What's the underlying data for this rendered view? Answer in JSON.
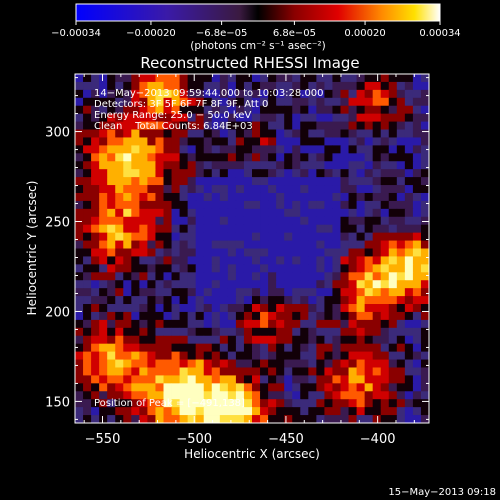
{
  "chart_data": {
    "type": "heatmap",
    "title": "Reconstructed RHESSI Image",
    "xlabel": "Heliocentric X (arcsec)",
    "ylabel": "Heliocentric Y (arcsec)",
    "xlim": [
      -565,
      -372
    ],
    "ylim": [
      138,
      332
    ],
    "x_ticks": [
      -550,
      -500,
      -450,
      -400
    ],
    "x_tick_labels": [
      "−550",
      "−500",
      "−450",
      "−400"
    ],
    "y_ticks": [
      150,
      200,
      250,
      300
    ],
    "y_tick_labels": [
      "150",
      "200",
      "250",
      "300"
    ],
    "colorbar": {
      "range": [
        -0.00034,
        0.00034
      ],
      "tick_values": [
        -0.00034,
        -0.0002,
        -6.8e-05,
        6.8e-05,
        0.0002,
        0.00034
      ],
      "tick_labels": [
        "−0.00034",
        "−0.00020",
        "−6.8e−05",
        "6.8e−05",
        "0.00020",
        "0.00034"
      ],
      "unit_label": "(photons cm⁻² s⁻¹ asec⁻²)"
    },
    "annotations": [
      "14−May−2013 09:59:44.000 to 10:03:28.000",
      "Detectors: 3F 5F 6F 7F 8F 9F, Att 0",
      "Energy Range: 25.0 − 50.0 keV",
      "Clean    Total Counts: 6.84E+03"
    ],
    "peak_label": "Position of Peak = [−491,138]",
    "footer_date": "15−May−2013 09:18",
    "colors": {
      "background": "#000000",
      "text": "#ffffff"
    }
  }
}
